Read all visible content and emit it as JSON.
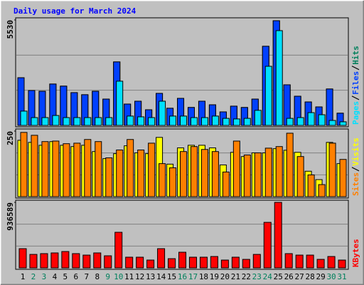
{
  "chart_data": {
    "type": "bar",
    "title": "Daily usage for March 2024",
    "categories": [
      "1",
      "2",
      "3",
      "4",
      "5",
      "6",
      "7",
      "8",
      "9",
      "10",
      "11",
      "12",
      "13",
      "14",
      "15",
      "16",
      "17",
      "18",
      "19",
      "20",
      "21",
      "22",
      "23",
      "24",
      "25",
      "26",
      "27",
      "28",
      "29",
      "30",
      "31"
    ],
    "category_colors": [
      "#000000",
      "#00805c",
      "#00805c",
      "#000000",
      "#000000",
      "#000000",
      "#000000",
      "#000000",
      "#00805c",
      "#00805c",
      "#000000",
      "#000000",
      "#000000",
      "#000000",
      "#000000",
      "#00805c",
      "#00805c",
      "#000000",
      "#000000",
      "#000000",
      "#000000",
      "#000000",
      "#00805c",
      "#00805c",
      "#000000",
      "#000000",
      "#000000",
      "#000000",
      "#000000",
      "#00805c",
      "#00805c"
    ],
    "grid": true,
    "panels": [
      {
        "ylim": [
          0,
          5530
        ],
        "yticks": [
          5530
        ],
        "series": [
          {
            "name": "Hits",
            "color": "#00805c",
            "values": [
              2500,
              1830,
              1790,
              2170,
              2060,
              1720,
              1610,
              1790,
              1380,
              3330,
              1120,
              1270,
              820,
              1680,
              900,
              1420,
              940,
              1270,
              1080,
              710,
              1010,
              940,
              1380,
              4150,
              5490,
              2130,
              1530,
              1230,
              970,
              1910,
              640
            ]
          },
          {
            "name": "Files",
            "color": "#0040ff",
            "values": [
              2500,
              1830,
              1790,
              2170,
              2060,
              1720,
              1610,
              1790,
              1380,
              3330,
              1120,
              1270,
              820,
              1680,
              900,
              1420,
              940,
              1270,
              1080,
              710,
              1010,
              940,
              1380,
              4150,
              5490,
              2130,
              1530,
              1230,
              970,
              1910,
              640
            ]
          },
          {
            "name": "Pages",
            "color": "#00e0ff",
            "values": [
              750,
              410,
              410,
              520,
              410,
              410,
              410,
              410,
              410,
              2320,
              490,
              450,
              410,
              1270,
              490,
              490,
              410,
              410,
              490,
              370,
              340,
              370,
              790,
              3100,
              4970,
              370,
              410,
              670,
              560,
              260,
              190
            ]
          }
        ]
      },
      {
        "ylim": [
          0,
          250
        ],
        "yticks": [
          250
        ],
        "series": [
          {
            "name": "Visits",
            "color": "#ffff00",
            "values": [
              215,
              207,
              196,
              210,
              196,
              191,
              196,
              172,
              145,
              164,
              194,
              167,
              164,
              226,
              124,
              186,
              196,
              196,
              186,
              121,
              169,
              153,
              167,
              167,
              183,
              177,
              169,
              97,
              65,
              207,
              126
            ]
          },
          {
            "name": "Sites",
            "color": "#ff8000",
            "values": [
              245,
              234,
              210,
              212,
              202,
              204,
              218,
              210,
              148,
              178,
              218,
              178,
              204,
              126,
              110,
              172,
              191,
              180,
              172,
              94,
              212,
              159,
              167,
              185,
              191,
              242,
              153,
              83,
              46,
              204,
              142
            ]
          }
        ]
      },
      {
        "ylim": [
          0,
          936589
        ],
        "yticks": [
          936589
        ],
        "series": [
          {
            "name": "KBytes",
            "color": "#ff0000",
            "values": [
              275000,
              193000,
              204000,
              214000,
              234000,
              204000,
              183000,
              214000,
              173000,
              509000,
              153000,
              153000,
              112000,
              275000,
              132000,
              224000,
              153000,
              153000,
              163000,
              112000,
              153000,
              122000,
              193000,
              651000,
              936589,
              204000,
              183000,
              183000,
              122000,
              163000,
              112000
            ]
          }
        ]
      }
    ]
  }
}
